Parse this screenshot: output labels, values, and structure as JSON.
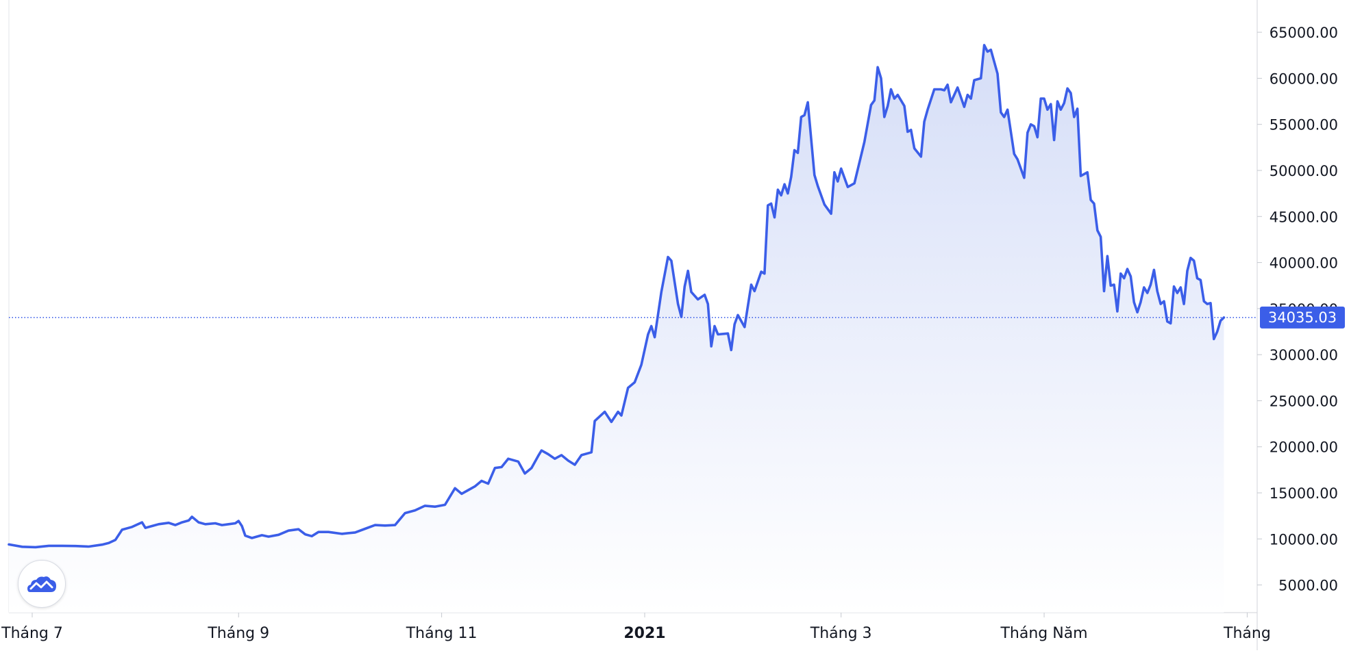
{
  "chart_data": {
    "type": "area",
    "title": "",
    "xlabel": "",
    "ylabel": "",
    "ylim": [
      2000,
      68500
    ],
    "y_ticks": [
      "65000.00",
      "60000.00",
      "55000.00",
      "50000.00",
      "45000.00",
      "40000.00",
      "35000.00",
      "30000.00",
      "25000.00",
      "20000.00",
      "15000.00",
      "10000.00",
      "5000.00"
    ],
    "y_tick_values": [
      65000,
      60000,
      55000,
      50000,
      45000,
      40000,
      35000,
      30000,
      25000,
      20000,
      15000,
      10000,
      5000
    ],
    "x_ticks": [
      "Tháng 7",
      "Tháng 9",
      "Tháng 11",
      "2021",
      "Tháng 3",
      "Tháng Năm",
      "Tháng"
    ],
    "x_tick_dates": [
      "2020-07-01",
      "2020-09-01",
      "2020-11-01",
      "2021-01-01",
      "2021-03-01",
      "2021-05-01",
      "2021-07-01"
    ],
    "x_tick_bold": [
      false,
      false,
      false,
      true,
      false,
      false,
      false
    ],
    "xlim": [
      "2020-06-24",
      "2021-07-04"
    ],
    "last_price": 34035.03,
    "last_price_label": "34035.03",
    "grid": false,
    "colors": {
      "line": "#3b5ee8",
      "fill_top": "#d3dcf7",
      "fill_bottom": "#ffffff",
      "badge": "#3b5ee8",
      "axis": "#d0d3da"
    },
    "series": [
      {
        "values": [
          [
            "2020-06-24",
            9400
          ],
          [
            "2020-06-28",
            9150
          ],
          [
            "2020-07-02",
            9100
          ],
          [
            "2020-07-06",
            9250
          ],
          [
            "2020-07-10",
            9250
          ],
          [
            "2020-07-14",
            9230
          ],
          [
            "2020-07-18",
            9170
          ],
          [
            "2020-07-22",
            9380
          ],
          [
            "2020-07-24",
            9560
          ],
          [
            "2020-07-26",
            9900
          ],
          [
            "2020-07-28",
            11000
          ],
          [
            "2020-07-31",
            11300
          ],
          [
            "2020-08-03",
            11800
          ],
          [
            "2020-08-04",
            11200
          ],
          [
            "2020-08-06",
            11400
          ],
          [
            "2020-08-08",
            11600
          ],
          [
            "2020-08-11",
            11750
          ],
          [
            "2020-08-13",
            11500
          ],
          [
            "2020-08-15",
            11800
          ],
          [
            "2020-08-17",
            12000
          ],
          [
            "2020-08-18",
            12400
          ],
          [
            "2020-08-20",
            11800
          ],
          [
            "2020-08-22",
            11600
          ],
          [
            "2020-08-25",
            11700
          ],
          [
            "2020-08-27",
            11500
          ],
          [
            "2020-08-29",
            11600
          ],
          [
            "2020-08-31",
            11700
          ],
          [
            "2020-09-01",
            11950
          ],
          [
            "2020-09-02",
            11400
          ],
          [
            "2020-09-03",
            10350
          ],
          [
            "2020-09-05",
            10100
          ],
          [
            "2020-09-08",
            10400
          ],
          [
            "2020-09-10",
            10250
          ],
          [
            "2020-09-13",
            10450
          ],
          [
            "2020-09-16",
            10900
          ],
          [
            "2020-09-19",
            11050
          ],
          [
            "2020-09-21",
            10500
          ],
          [
            "2020-09-23",
            10300
          ],
          [
            "2020-09-25",
            10750
          ],
          [
            "2020-09-28",
            10750
          ],
          [
            "2020-10-02",
            10550
          ],
          [
            "2020-10-06",
            10700
          ],
          [
            "2020-10-09",
            11100
          ],
          [
            "2020-10-12",
            11500
          ],
          [
            "2020-10-15",
            11450
          ],
          [
            "2020-10-18",
            11500
          ],
          [
            "2020-10-21",
            12800
          ],
          [
            "2020-10-24",
            13100
          ],
          [
            "2020-10-27",
            13600
          ],
          [
            "2020-10-30",
            13500
          ],
          [
            "2020-11-02",
            13700
          ],
          [
            "2020-11-05",
            15500
          ],
          [
            "2020-11-07",
            14900
          ],
          [
            "2020-11-09",
            15300
          ],
          [
            "2020-11-11",
            15700
          ],
          [
            "2020-11-13",
            16300
          ],
          [
            "2020-11-15",
            16000
          ],
          [
            "2020-11-17",
            17700
          ],
          [
            "2020-11-19",
            17800
          ],
          [
            "2020-11-21",
            18700
          ],
          [
            "2020-11-24",
            18400
          ],
          [
            "2020-11-26",
            17100
          ],
          [
            "2020-11-28",
            17700
          ],
          [
            "2020-11-30",
            19000
          ],
          [
            "2020-12-01",
            19600
          ],
          [
            "2020-12-03",
            19200
          ],
          [
            "2020-12-05",
            18700
          ],
          [
            "2020-12-07",
            19100
          ],
          [
            "2020-12-09",
            18500
          ],
          [
            "2020-12-11",
            18050
          ],
          [
            "2020-12-13",
            19100
          ],
          [
            "2020-12-16",
            19400
          ],
          [
            "2020-12-17",
            22800
          ],
          [
            "2020-12-20",
            23800
          ],
          [
            "2020-12-22",
            22700
          ],
          [
            "2020-12-24",
            23800
          ],
          [
            "2020-12-25",
            23400
          ],
          [
            "2020-12-27",
            26400
          ],
          [
            "2020-12-29",
            27000
          ],
          [
            "2020-12-31",
            28900
          ],
          [
            "2021-01-02",
            32200
          ],
          [
            "2021-01-03",
            33100
          ],
          [
            "2021-01-04",
            31900
          ],
          [
            "2021-01-06",
            36800
          ],
          [
            "2021-01-08",
            40600
          ],
          [
            "2021-01-09",
            40200
          ],
          [
            "2021-01-11",
            35500
          ],
          [
            "2021-01-12",
            34100
          ],
          [
            "2021-01-13",
            37400
          ],
          [
            "2021-01-14",
            39100
          ],
          [
            "2021-01-15",
            36800
          ],
          [
            "2021-01-17",
            36000
          ],
          [
            "2021-01-19",
            36500
          ],
          [
            "2021-01-20",
            35500
          ],
          [
            "2021-01-21",
            30900
          ],
          [
            "2021-01-22",
            33100
          ],
          [
            "2021-01-23",
            32200
          ],
          [
            "2021-01-26",
            32300
          ],
          [
            "2021-01-27",
            30500
          ],
          [
            "2021-01-28",
            33300
          ],
          [
            "2021-01-29",
            34300
          ],
          [
            "2021-01-31",
            33000
          ],
          [
            "2021-02-02",
            37600
          ],
          [
            "2021-02-03",
            36900
          ],
          [
            "2021-02-05",
            39000
          ],
          [
            "2021-02-06",
            38800
          ],
          [
            "2021-02-07",
            46200
          ],
          [
            "2021-02-08",
            46400
          ],
          [
            "2021-02-09",
            44900
          ],
          [
            "2021-02-10",
            47900
          ],
          [
            "2021-02-11",
            47300
          ],
          [
            "2021-02-12",
            48500
          ],
          [
            "2021-02-13",
            47500
          ],
          [
            "2021-02-14",
            49300
          ],
          [
            "2021-02-15",
            52200
          ],
          [
            "2021-02-16",
            51900
          ],
          [
            "2021-02-17",
            55800
          ],
          [
            "2021-02-18",
            56000
          ],
          [
            "2021-02-19",
            57400
          ],
          [
            "2021-02-21",
            49500
          ],
          [
            "2021-02-22",
            48300
          ],
          [
            "2021-02-24",
            46300
          ],
          [
            "2021-02-26",
            45300
          ],
          [
            "2021-02-27",
            49800
          ],
          [
            "2021-02-28",
            48800
          ],
          [
            "2021-03-01",
            50200
          ],
          [
            "2021-03-03",
            48200
          ],
          [
            "2021-03-05",
            48600
          ],
          [
            "2021-03-08",
            53100
          ],
          [
            "2021-03-10",
            57100
          ],
          [
            "2021-03-11",
            57600
          ],
          [
            "2021-03-12",
            61200
          ],
          [
            "2021-03-13",
            60000
          ],
          [
            "2021-03-14",
            55800
          ],
          [
            "2021-03-15",
            57000
          ],
          [
            "2021-03-16",
            58800
          ],
          [
            "2021-03-17",
            57800
          ],
          [
            "2021-03-18",
            58200
          ],
          [
            "2021-03-20",
            57000
          ],
          [
            "2021-03-21",
            54200
          ],
          [
            "2021-03-22",
            54400
          ],
          [
            "2021-03-23",
            52400
          ],
          [
            "2021-03-25",
            51500
          ],
          [
            "2021-03-26",
            55300
          ],
          [
            "2021-03-27",
            56600
          ],
          [
            "2021-03-29",
            58800
          ],
          [
            "2021-03-31",
            58800
          ],
          [
            "2021-04-01",
            58700
          ],
          [
            "2021-04-02",
            59300
          ],
          [
            "2021-04-03",
            57400
          ],
          [
            "2021-04-05",
            59000
          ],
          [
            "2021-04-07",
            56900
          ],
          [
            "2021-04-08",
            58200
          ],
          [
            "2021-04-09",
            57800
          ],
          [
            "2021-04-10",
            59800
          ],
          [
            "2021-04-12",
            60000
          ],
          [
            "2021-04-13",
            63600
          ],
          [
            "2021-04-14",
            62900
          ],
          [
            "2021-04-15",
            63100
          ],
          [
            "2021-04-17",
            60500
          ],
          [
            "2021-04-18",
            56300
          ],
          [
            "2021-04-19",
            55800
          ],
          [
            "2021-04-20",
            56600
          ],
          [
            "2021-04-22",
            51800
          ],
          [
            "2021-04-23",
            51200
          ],
          [
            "2021-04-25",
            49200
          ],
          [
            "2021-04-26",
            54100
          ],
          [
            "2021-04-27",
            55000
          ],
          [
            "2021-04-28",
            54800
          ],
          [
            "2021-04-29",
            53600
          ],
          [
            "2021-04-30",
            57800
          ],
          [
            "2021-05-01",
            57800
          ],
          [
            "2021-05-02",
            56600
          ],
          [
            "2021-05-03",
            57200
          ],
          [
            "2021-05-04",
            53300
          ],
          [
            "2021-05-05",
            57500
          ],
          [
            "2021-05-06",
            56600
          ],
          [
            "2021-05-07",
            57300
          ],
          [
            "2021-05-08",
            58900
          ],
          [
            "2021-05-09",
            58400
          ],
          [
            "2021-05-10",
            55800
          ],
          [
            "2021-05-11",
            56700
          ],
          [
            "2021-05-12",
            49400
          ],
          [
            "2021-05-14",
            49800
          ],
          [
            "2021-05-15",
            46800
          ],
          [
            "2021-05-16",
            46400
          ],
          [
            "2021-05-17",
            43500
          ],
          [
            "2021-05-18",
            42800
          ],
          [
            "2021-05-19",
            36900
          ],
          [
            "2021-05-20",
            40700
          ],
          [
            "2021-05-21",
            37500
          ],
          [
            "2021-05-22",
            37600
          ],
          [
            "2021-05-23",
            34700
          ],
          [
            "2021-05-24",
            38800
          ],
          [
            "2021-05-25",
            38300
          ],
          [
            "2021-05-26",
            39300
          ],
          [
            "2021-05-27",
            38500
          ],
          [
            "2021-05-28",
            35700
          ],
          [
            "2021-05-29",
            34600
          ],
          [
            "2021-05-30",
            35700
          ],
          [
            "2021-05-31",
            37300
          ],
          [
            "2021-06-01",
            36700
          ],
          [
            "2021-06-02",
            37600
          ],
          [
            "2021-06-03",
            39200
          ],
          [
            "2021-06-04",
            36900
          ],
          [
            "2021-06-05",
            35500
          ],
          [
            "2021-06-06",
            35800
          ],
          [
            "2021-06-07",
            33600
          ],
          [
            "2021-06-08",
            33400
          ],
          [
            "2021-06-09",
            37400
          ],
          [
            "2021-06-10",
            36700
          ],
          [
            "2021-06-11",
            37300
          ],
          [
            "2021-06-12",
            35500
          ],
          [
            "2021-06-13",
            39100
          ],
          [
            "2021-06-14",
            40500
          ],
          [
            "2021-06-15",
            40200
          ],
          [
            "2021-06-16",
            38300
          ],
          [
            "2021-06-17",
            38100
          ],
          [
            "2021-06-18",
            35800
          ],
          [
            "2021-06-19",
            35500
          ],
          [
            "2021-06-20",
            35600
          ],
          [
            "2021-06-21",
            31700
          ],
          [
            "2021-06-22",
            32500
          ],
          [
            "2021-06-23",
            33700
          ],
          [
            "2021-06-24",
            34035
          ]
        ]
      }
    ]
  },
  "logo": {
    "icon": "chart-cloud-icon"
  }
}
